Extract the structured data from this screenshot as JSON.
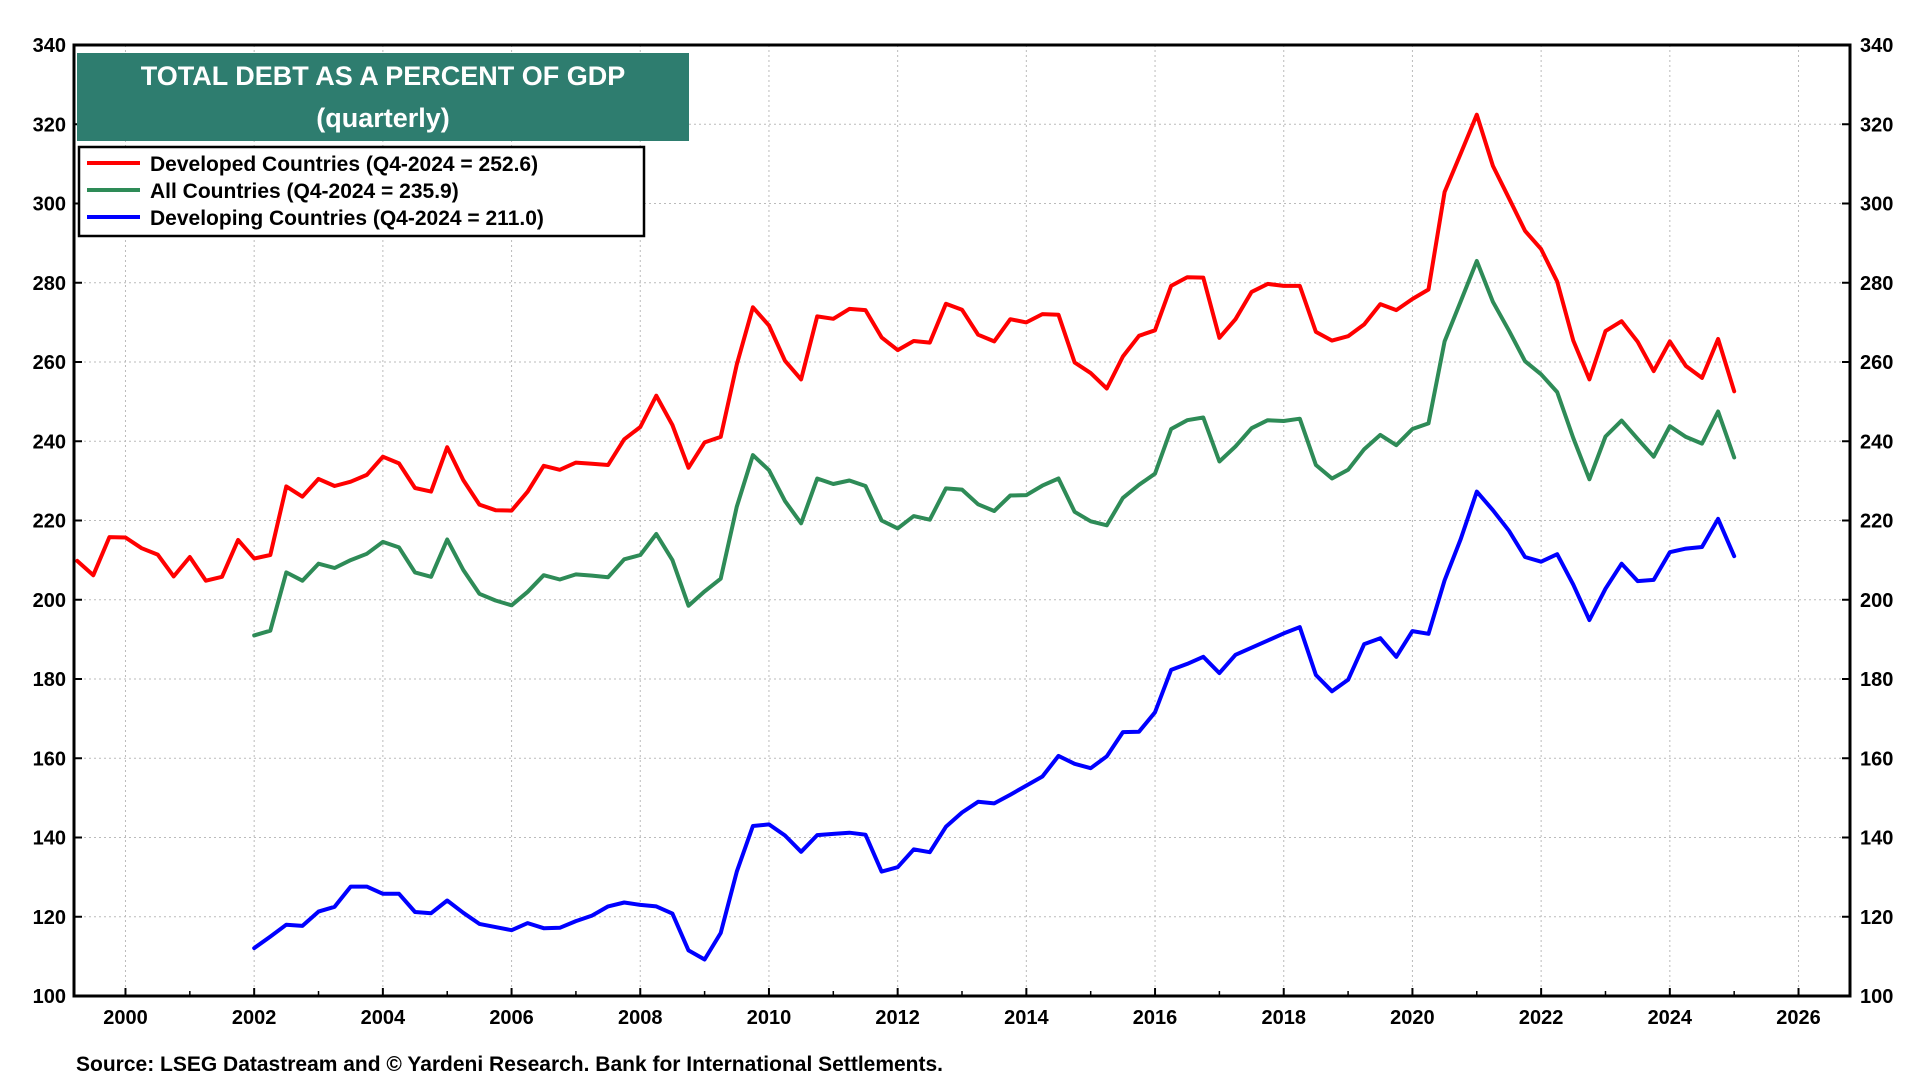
{
  "chart_data": {
    "type": "line",
    "title": "TOTAL DEBT AS A PERCENT OF GDP",
    "subtitle": "(quarterly)",
    "source": "Source: LSEG Datastream and © Yardeni Research. Bank for International Settlements.",
    "xlim": [
      1999.2,
      2026.8
    ],
    "ylim": [
      100,
      340
    ],
    "x_ticks": [
      2000,
      2002,
      2004,
      2006,
      2008,
      2010,
      2012,
      2014,
      2016,
      2018,
      2020,
      2022,
      2024,
      2026
    ],
    "x_tick_labels": [
      "2000",
      "2002",
      "2004",
      "2006",
      "2008",
      "2010",
      "2012",
      "2014",
      "2016",
      "2018",
      "2020",
      "2022",
      "2024",
      "2026"
    ],
    "y_ticks": [
      100,
      120,
      140,
      160,
      180,
      200,
      220,
      240,
      260,
      280,
      300,
      320,
      340
    ],
    "y_tick_labels": [
      "100",
      "120",
      "140",
      "160",
      "180",
      "200",
      "220",
      "240",
      "260",
      "280",
      "300",
      "320",
      "340"
    ],
    "grid": true,
    "legend_position": "top-left",
    "colors": {
      "title_bg": "#2E7D6F",
      "title_text": "#ffffff"
    },
    "series": [
      {
        "name": "Developed Countries (Q4-2024 = 252.6)",
        "color": "#FF0000",
        "x0": 1999.25,
        "dx": 0.25,
        "values": [
          209.8,
          206.2,
          215.8,
          215.7,
          213.0,
          211.4,
          205.9,
          210.8,
          204.8,
          205.8,
          215.1,
          210.4,
          211.3,
          228.6,
          226.0,
          230.5,
          228.7,
          229.8,
          231.5,
          236.1,
          234.4,
          228.2,
          227.3,
          238.5,
          230.2,
          224.0,
          222.6,
          222.5,
          227.3,
          233.8,
          232.8,
          234.6,
          234.3,
          234.0,
          240.5,
          243.6,
          251.5,
          244.1,
          233.3,
          239.7,
          241.1,
          259.4,
          273.8,
          269.2,
          260.3,
          255.6,
          271.5,
          270.9,
          273.4,
          273.1,
          266.2,
          263.0,
          265.3,
          264.9,
          274.7,
          273.2,
          266.9,
          265.2,
          270.8,
          270.0,
          272.1,
          271.9,
          259.9,
          257.2,
          253.3,
          261.4,
          266.6,
          268.0,
          279.2,
          281.4,
          281.3,
          266.1,
          270.8,
          277.7,
          279.7,
          279.2,
          279.2,
          267.6,
          265.4,
          266.5,
          269.5,
          274.6,
          273.1,
          275.9,
          278.3,
          302.9,
          312.6,
          322.4,
          309.5,
          301.3,
          293.1,
          288.5,
          280.3,
          265.4,
          255.6,
          267.8,
          270.3,
          265.1,
          257.7,
          265.2,
          259.0,
          256.0,
          265.8,
          252.6
        ]
      },
      {
        "name": "All Countries (Q4-2024 = 235.9)",
        "color": "#2E8B57",
        "x0": 2002.0,
        "dx": 0.25,
        "values": [
          191.0,
          192.2,
          206.9,
          204.8,
          209.1,
          208.0,
          210.0,
          211.6,
          214.6,
          213.2,
          206.9,
          205.8,
          215.2,
          207.5,
          201.5,
          199.8,
          198.6,
          202.0,
          206.2,
          205.1,
          206.4,
          206.1,
          205.7,
          210.2,
          211.3,
          216.6,
          210.0,
          198.5,
          202.1,
          205.3,
          223.5,
          236.5,
          232.7,
          224.9,
          219.3,
          230.6,
          229.2,
          230.1,
          228.7,
          220.0,
          218.0,
          221.1,
          220.2,
          228.1,
          227.8,
          224.1,
          222.4,
          226.3,
          226.4,
          228.8,
          230.6,
          222.2,
          219.8,
          218.8,
          225.7,
          229.0,
          231.8,
          243.1,
          245.3,
          246.0,
          234.9,
          238.7,
          243.3,
          245.3,
          245.1,
          245.7,
          234.0,
          230.6,
          232.8,
          238.0,
          241.6,
          239.0,
          243.1,
          244.5,
          265.2,
          275.3,
          285.5,
          275.2,
          267.9,
          260.2,
          256.9,
          252.4,
          240.8,
          230.4,
          241.2,
          245.2,
          240.6,
          236.1,
          243.8,
          241.1,
          239.4,
          247.5,
          235.9
        ]
      },
      {
        "name": "Developing Countries (Q4-2024 = 211.0)",
        "color": "#0000FF",
        "x0": 2002.0,
        "dx": 0.25,
        "values": [
          112.1,
          115.0,
          118.0,
          117.7,
          121.3,
          122.5,
          127.6,
          127.6,
          125.8,
          125.8,
          121.2,
          120.9,
          124.1,
          121.0,
          118.2,
          117.4,
          116.6,
          118.4,
          117.1,
          117.2,
          118.9,
          120.3,
          122.6,
          123.6,
          123.0,
          122.6,
          120.8,
          111.5,
          109.2,
          115.9,
          131.4,
          142.9,
          143.3,
          140.5,
          136.4,
          140.6,
          140.9,
          141.2,
          140.7,
          131.4,
          132.5,
          137.0,
          136.3,
          142.7,
          146.3,
          149.0,
          148.6,
          150.8,
          153.1,
          155.4,
          160.6,
          158.6,
          157.5,
          160.5,
          166.6,
          166.7,
          171.6,
          182.3,
          183.8,
          185.6,
          181.5,
          186.1,
          187.9,
          189.7,
          191.5,
          193.1,
          181.0,
          176.9,
          179.8,
          188.8,
          190.3,
          185.6,
          192.1,
          191.4,
          204.9,
          215.3,
          227.3,
          222.6,
          217.4,
          210.8,
          209.6,
          211.5,
          203.8,
          194.9,
          202.8,
          209.1,
          204.7,
          205.0,
          212.0,
          212.9,
          213.3,
          220.4,
          211.0
        ]
      }
    ]
  }
}
